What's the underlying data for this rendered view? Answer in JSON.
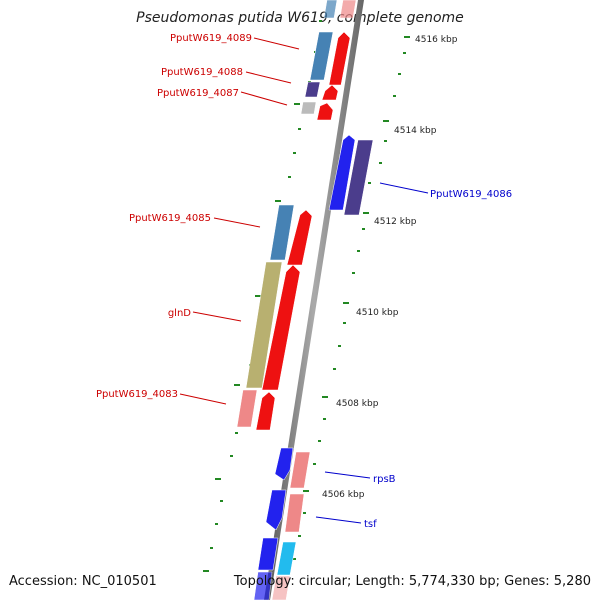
{
  "title": "Pseudomonas putida W619, complete genome",
  "accession": "Accession: NC_010501",
  "summary": "Topology: circular; Length: 5,774,330 bp; Genes: 5,280",
  "scale_labels": [
    "4516 kbp",
    "4514 kbp",
    "4512 kbp",
    "4510 kbp",
    "4508 kbp",
    "4506 kbp"
  ],
  "gene_labels": {
    "g4089": "PputW619_4089",
    "g4088": "PputW619_4088",
    "g4087": "PputW619_4087",
    "g4086": "PputW619_4086",
    "g4085": "PputW619_4085",
    "glnD": "glnD",
    "g4083": "PputW619_4083",
    "rpsB": "rpsB",
    "tsf": "tsf"
  },
  "colors": {
    "forward_label": "#cc0000",
    "reverse_label": "#0000cc",
    "cds_red": "#ee1111",
    "cds_pink": "#ee8888",
    "cds_blue": "#2222ee",
    "cds_dark_purple": "#4b3d8c",
    "cds_steel_blue": "#4682b4",
    "cds_olive": "#b8b070",
    "cds_gray": "#bbbbbb",
    "cds_cyan": "#22bbee",
    "tick_green": "#228822"
  }
}
